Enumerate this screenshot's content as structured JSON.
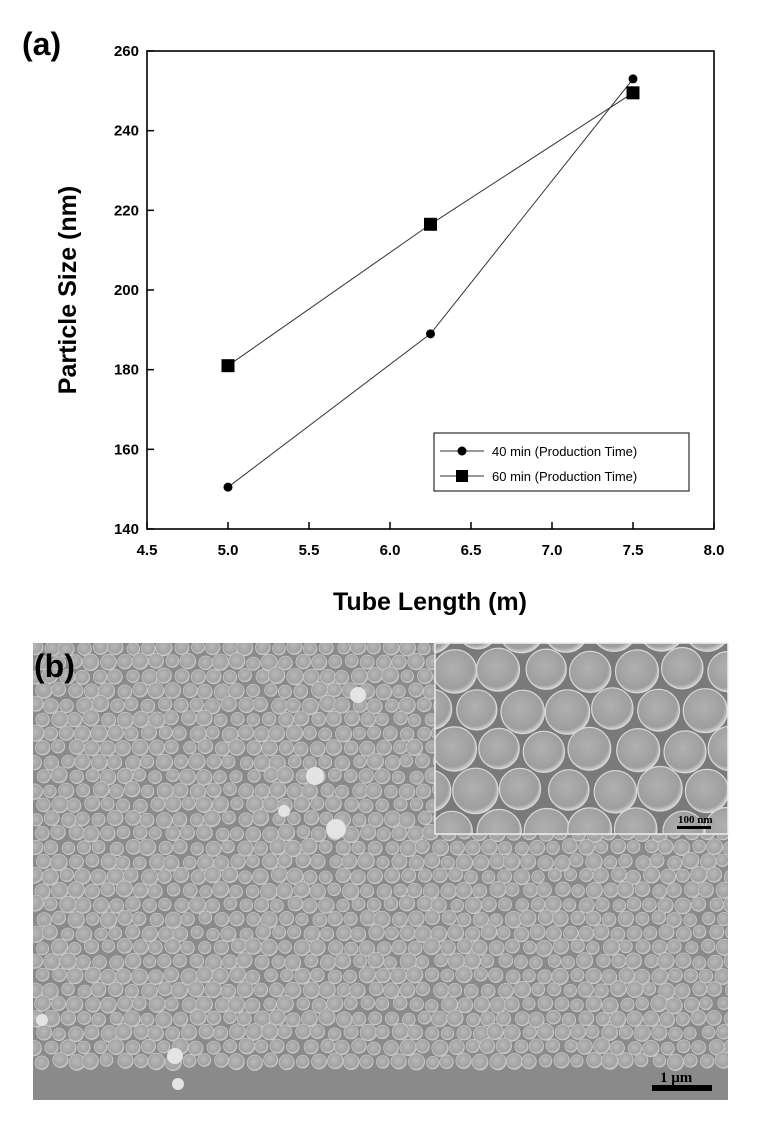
{
  "panels": {
    "a_label": "(a)",
    "b_label": "(b)"
  },
  "chart_data": {
    "type": "line",
    "xlabel": "Tube Length (m)",
    "ylabel": "Particle Size (nm)",
    "xlim": [
      4.5,
      8.0
    ],
    "ylim": [
      140,
      260
    ],
    "xticks": [
      "4.5",
      "5.0",
      "5.5",
      "6.0",
      "6.5",
      "7.0",
      "7.5",
      "8.0"
    ],
    "yticks": [
      "140",
      "160",
      "180",
      "200",
      "220",
      "240",
      "260"
    ],
    "grid": false,
    "legend_position": "bottom-right",
    "series": [
      {
        "name": "40 min (Production Time)",
        "marker": "circle",
        "x": [
          5.0,
          6.25,
          7.5
        ],
        "y": [
          150.5,
          189,
          253
        ]
      },
      {
        "name": "60 min (Production Time)",
        "marker": "square",
        "x": [
          5.0,
          6.25,
          7.5
        ],
        "y": [
          181,
          216.5,
          249.5
        ]
      }
    ]
  },
  "micrograph": {
    "main_scale_label": "1 μm",
    "inset_scale_label": "100 nm",
    "background_color": "#8a8a8a",
    "particle_color": "#a9a9a9"
  }
}
